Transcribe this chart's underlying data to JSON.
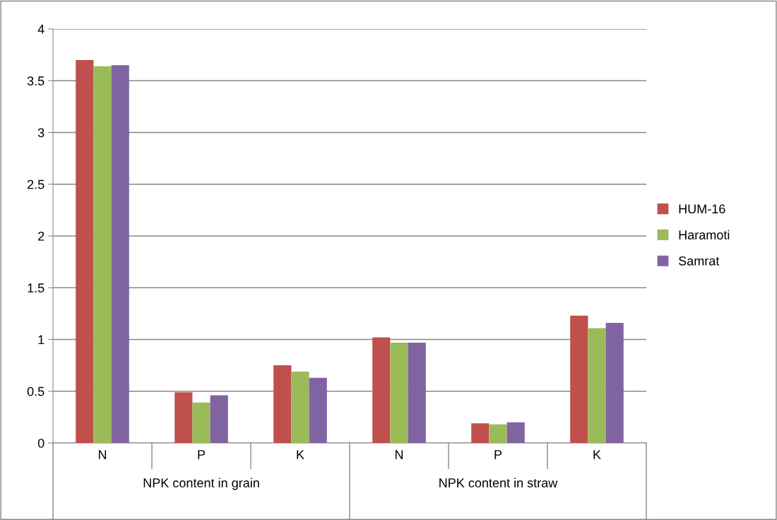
{
  "chart_data": {
    "type": "bar",
    "categories": [
      "N",
      "P",
      "K",
      "N",
      "P",
      "K"
    ],
    "annotations": [
      "NPK content in grain",
      "NPK content in straw"
    ],
    "series": [
      {
        "name": "HUM-16",
        "color": "#c0504d",
        "values": [
          3.7,
          0.49,
          0.75,
          1.02,
          0.19,
          1.23
        ]
      },
      {
        "name": "Haramoti",
        "color": "#9bbb59",
        "values": [
          3.64,
          0.39,
          0.69,
          0.97,
          0.18,
          1.11
        ]
      },
      {
        "name": "Samrat",
        "color": "#8064a2",
        "values": [
          3.65,
          0.46,
          0.63,
          0.97,
          0.2,
          1.16
        ]
      }
    ],
    "ylim": [
      0,
      4
    ],
    "yticks": [
      0,
      0.5,
      1,
      1.5,
      2,
      2.5,
      3,
      3.5,
      4
    ],
    "grid": "y",
    "legend": "right"
  }
}
